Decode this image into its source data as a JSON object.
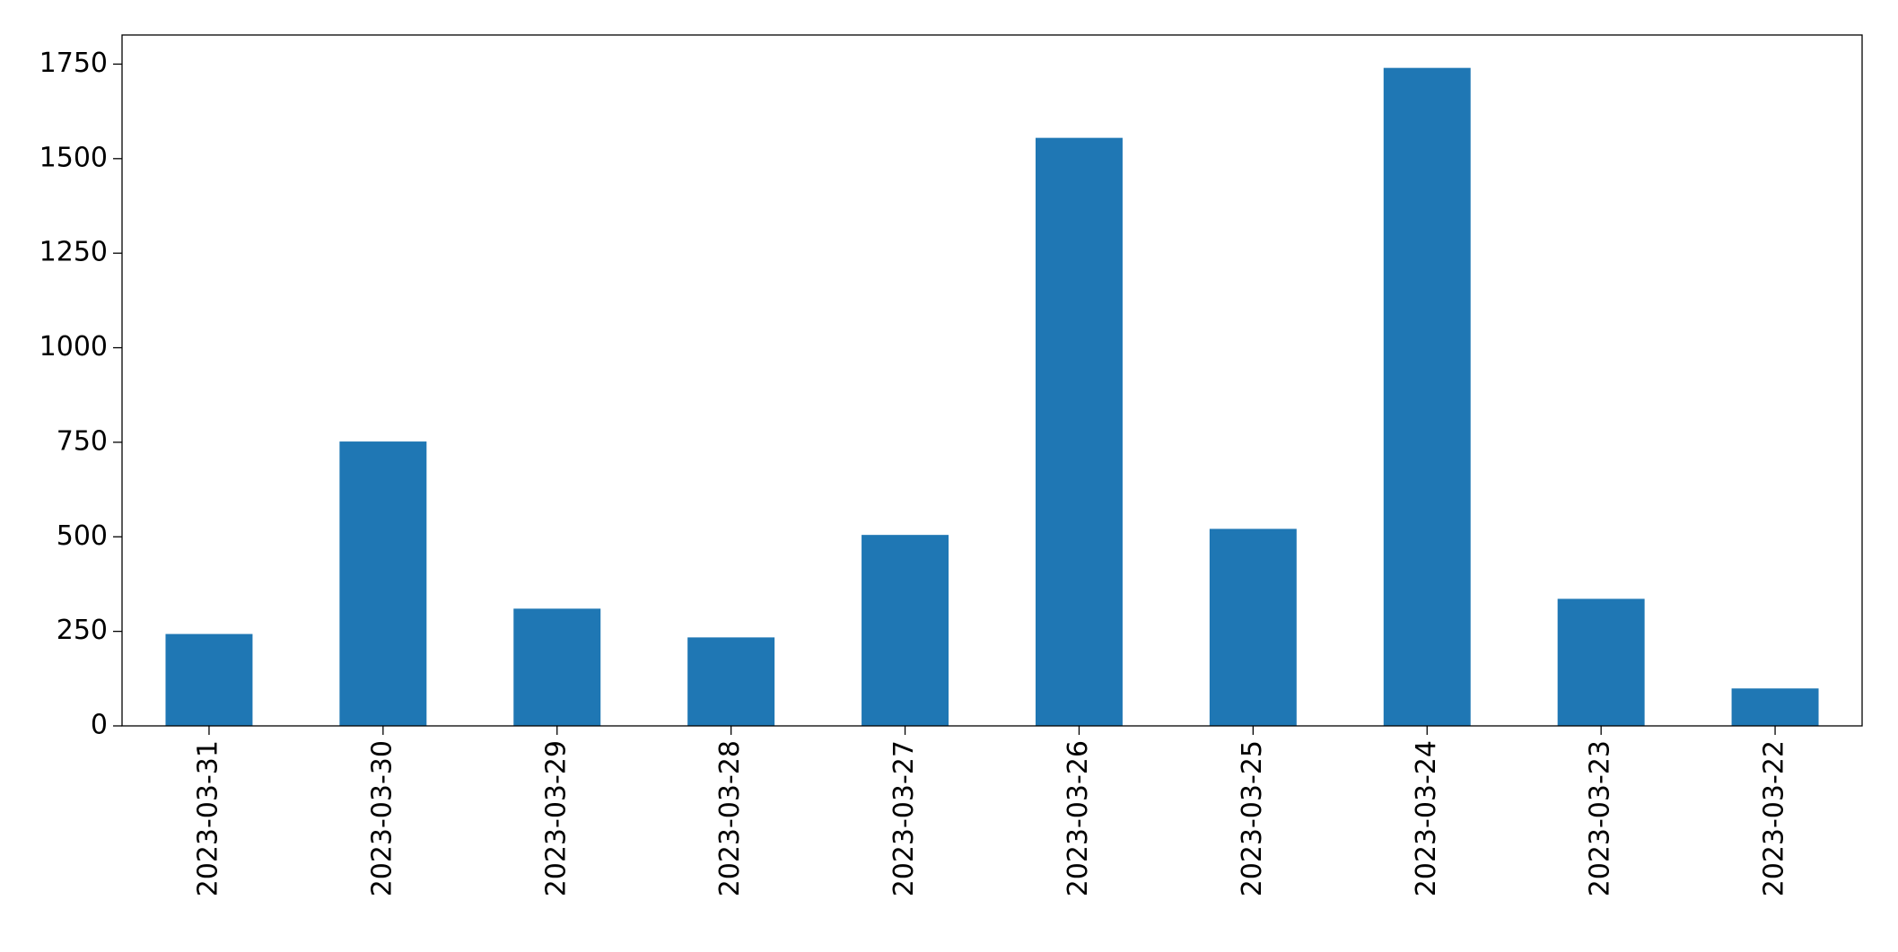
{
  "chart_data": {
    "type": "bar",
    "categories": [
      "2023-03-31",
      "2023-03-30",
      "2023-03-29",
      "2023-03-28",
      "2023-03-27",
      "2023-03-26",
      "2023-03-25",
      "2023-03-24",
      "2023-03-23",
      "2023-03-22"
    ],
    "values": [
      243,
      752,
      310,
      234,
      505,
      1555,
      521,
      1740,
      336,
      99
    ],
    "color": "#1f77b4",
    "ylim": [
      0,
      1827
    ],
    "yticks": [
      0,
      250,
      500,
      750,
      1000,
      1250,
      1500,
      1750
    ],
    "grid": false
  }
}
